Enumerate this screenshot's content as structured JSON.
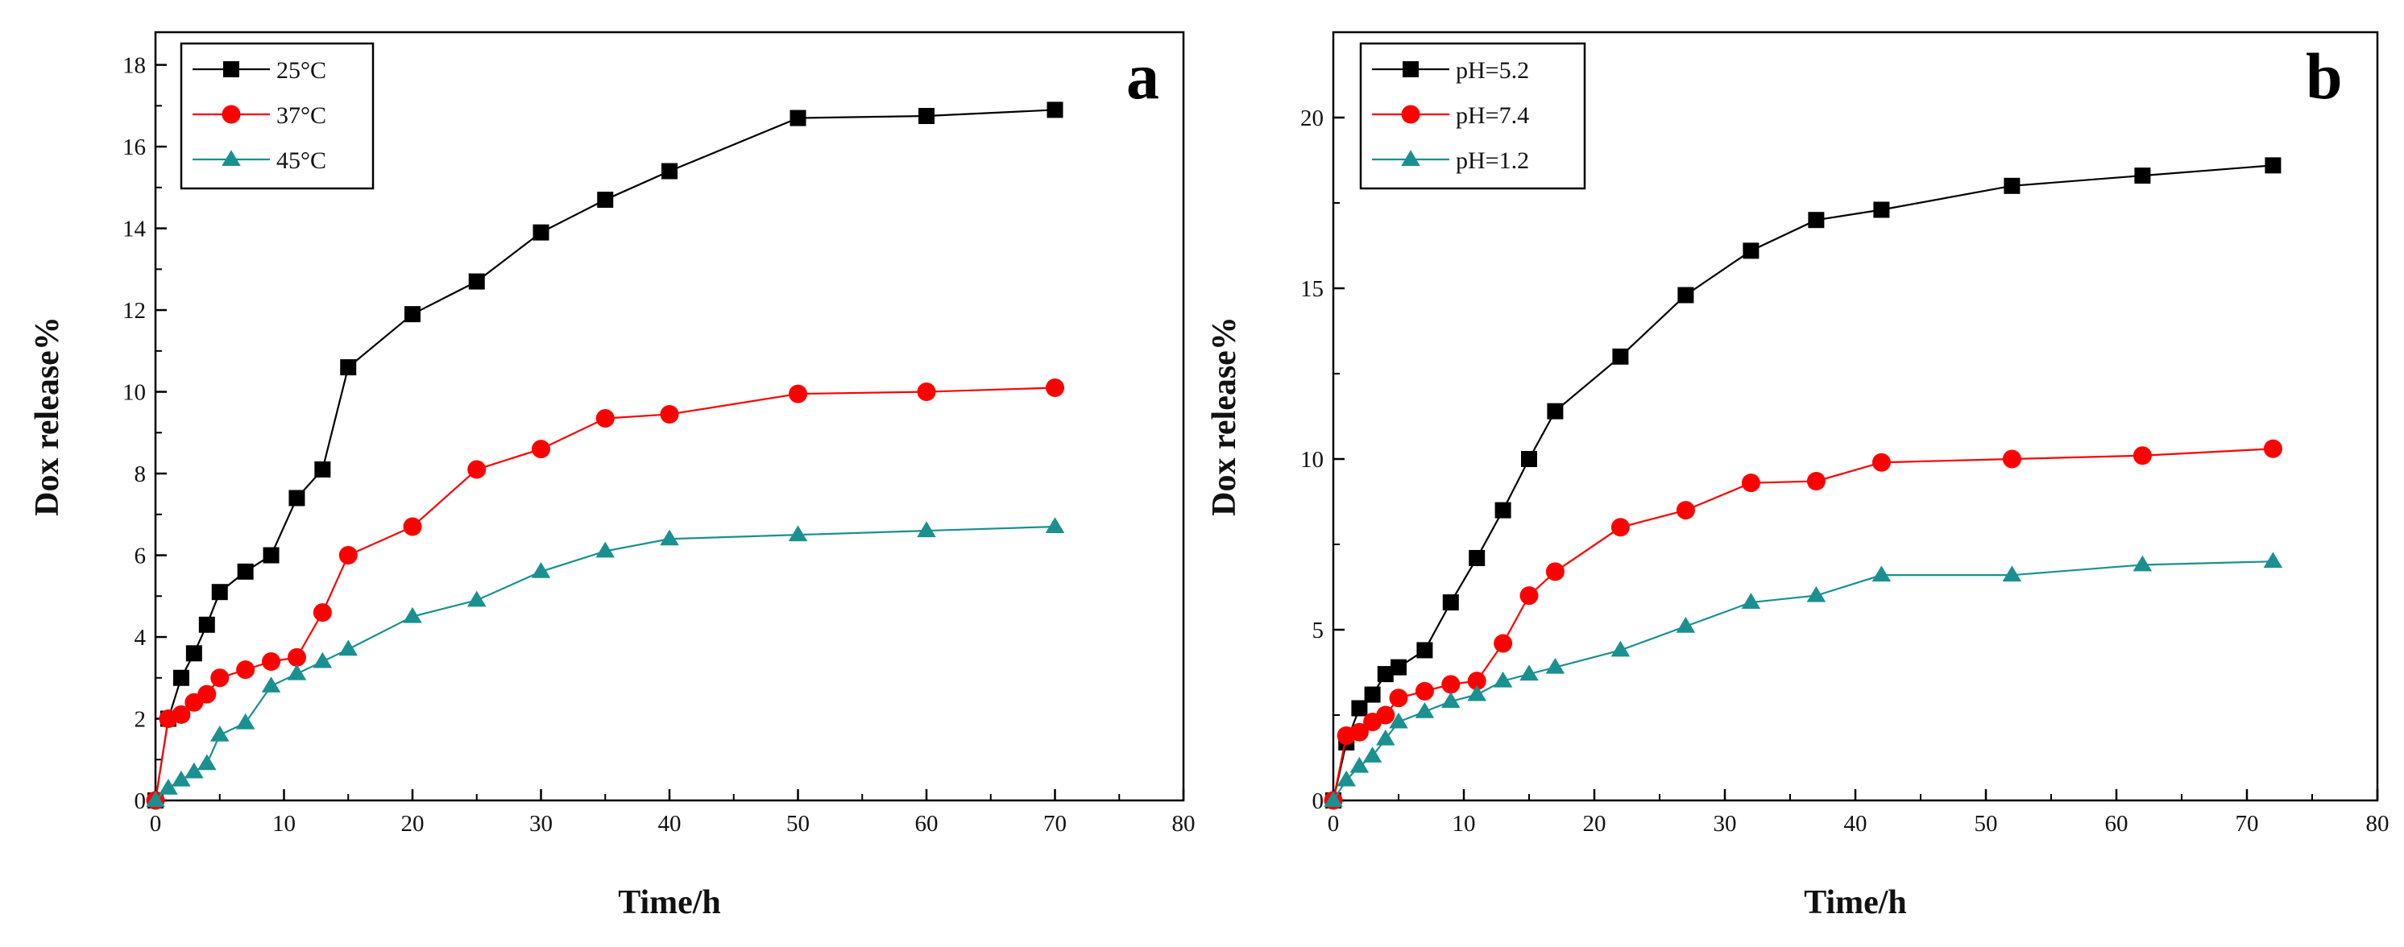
{
  "chart_data": [
    {
      "type": "line",
      "panel_label": "a",
      "title": "",
      "xlabel": "Time/h",
      "ylabel": "Dox release%",
      "xlim": [
        0,
        80
      ],
      "ylim": [
        0,
        18.8
      ],
      "xticks": [
        0,
        10,
        20,
        30,
        40,
        50,
        60,
        70,
        80
      ],
      "yticks": [
        0,
        2,
        4,
        6,
        8,
        10,
        12,
        14,
        16,
        18
      ],
      "grid": false,
      "legend_position": "top-left",
      "series": [
        {
          "name": "25°C",
          "color": "#000000",
          "marker": "square",
          "x": [
            0,
            1,
            2,
            3,
            4,
            5,
            7,
            9,
            11,
            13,
            15,
            20,
            25,
            30,
            35,
            40,
            50,
            60,
            70
          ],
          "y": [
            0,
            2.0,
            3.0,
            3.6,
            4.3,
            5.1,
            5.6,
            6.0,
            7.4,
            8.1,
            10.6,
            11.9,
            12.7,
            13.9,
            14.7,
            15.4,
            16.7,
            16.75,
            16.9
          ]
        },
        {
          "name": "37°C",
          "color": "#ff0000",
          "marker": "circle",
          "x": [
            0,
            1,
            2,
            3,
            4,
            5,
            7,
            9,
            11,
            13,
            15,
            20,
            25,
            30,
            35,
            40,
            50,
            60,
            70
          ],
          "y": [
            0,
            2.0,
            2.1,
            2.4,
            2.6,
            3.0,
            3.2,
            3.4,
            3.5,
            4.6,
            6.0,
            6.7,
            8.1,
            8.6,
            9.35,
            9.45,
            9.95,
            10.0,
            10.1
          ]
        },
        {
          "name": "45°C",
          "color": "#1a9090",
          "marker": "triangle",
          "x": [
            0,
            1,
            2,
            3,
            4,
            5,
            7,
            9,
            11,
            13,
            15,
            20,
            25,
            30,
            35,
            40,
            50,
            60,
            70
          ],
          "y": [
            0,
            0.3,
            0.5,
            0.7,
            0.9,
            1.6,
            1.9,
            2.8,
            3.1,
            3.4,
            3.7,
            4.5,
            4.9,
            5.6,
            6.1,
            6.4,
            6.5,
            6.6,
            6.7
          ]
        }
      ]
    },
    {
      "type": "line",
      "panel_label": "b",
      "title": "",
      "xlabel": "Time/h",
      "ylabel": "Dox release%",
      "xlim": [
        0,
        80
      ],
      "ylim": [
        0,
        22.5
      ],
      "xticks": [
        0,
        10,
        20,
        30,
        40,
        50,
        60,
        70,
        80
      ],
      "yticks": [
        0,
        5,
        10,
        15,
        20
      ],
      "grid": false,
      "legend_position": "top-left",
      "series": [
        {
          "name": "pH=5.2",
          "color": "#000000",
          "marker": "square",
          "x": [
            0,
            1,
            2,
            3,
            4,
            5,
            7,
            9,
            11,
            13,
            15,
            17,
            22,
            27,
            32,
            37,
            42,
            52,
            62,
            72
          ],
          "y": [
            0,
            1.7,
            2.7,
            3.1,
            3.7,
            3.9,
            4.4,
            5.8,
            7.1,
            8.5,
            10.0,
            11.4,
            13.0,
            14.8,
            16.1,
            17.0,
            17.3,
            18.0,
            18.3,
            18.6
          ]
        },
        {
          "name": "pH=7.4",
          "color": "#ff0000",
          "marker": "circle",
          "x": [
            0,
            1,
            2,
            3,
            4,
            5,
            7,
            9,
            11,
            13,
            15,
            17,
            22,
            27,
            32,
            37,
            42,
            52,
            62,
            72
          ],
          "y": [
            0,
            1.9,
            2.0,
            2.3,
            2.5,
            3.0,
            3.2,
            3.4,
            3.5,
            4.6,
            6.0,
            6.7,
            8.0,
            8.5,
            9.3,
            9.35,
            9.9,
            10.0,
            10.1,
            10.3
          ]
        },
        {
          "name": "pH=1.2",
          "color": "#1a9090",
          "marker": "triangle",
          "x": [
            0,
            1,
            2,
            3,
            4,
            5,
            7,
            9,
            11,
            13,
            15,
            17,
            22,
            27,
            32,
            37,
            42,
            52,
            62,
            72
          ],
          "y": [
            0,
            0.6,
            1.0,
            1.3,
            1.8,
            2.3,
            2.6,
            2.9,
            3.1,
            3.5,
            3.7,
            3.9,
            4.4,
            5.1,
            5.8,
            6.0,
            6.6,
            6.6,
            6.9,
            7.0
          ]
        }
      ]
    }
  ]
}
